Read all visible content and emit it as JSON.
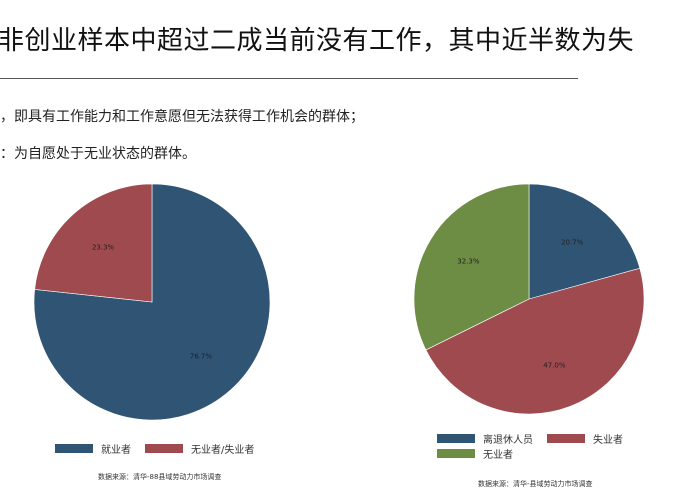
{
  "headline": "非创业样本中超过二成当前没有工作，其中近半数为失",
  "notes": [
    "，即具有工作能力和工作意愿但无法获得工作机会的群体；",
    "：为自愿处于无业状态的群体。"
  ],
  "chart_data": [
    {
      "type": "pie",
      "categories": [
        "就业者",
        "无业者/失业者"
      ],
      "values": [
        76.7,
        23.3
      ],
      "labels": [
        "76.7%",
        "23.3%"
      ],
      "colors": [
        "#2f5474",
        "#9e4a4f"
      ],
      "legend_position": "bottom",
      "source": "数据来源：清华-88县域劳动力市场调查"
    },
    {
      "type": "pie",
      "categories": [
        "离退休人员",
        "失业者",
        "无业者"
      ],
      "values": [
        20.7,
        47.0,
        32.3
      ],
      "labels": [
        "20.7%",
        "47.0%",
        "32.3%"
      ],
      "colors": [
        "#2f5474",
        "#9e4a4f",
        "#6d8c44"
      ],
      "legend_position": "bottom",
      "source": "数据来源：清华-县域劳动力市场调查"
    }
  ]
}
